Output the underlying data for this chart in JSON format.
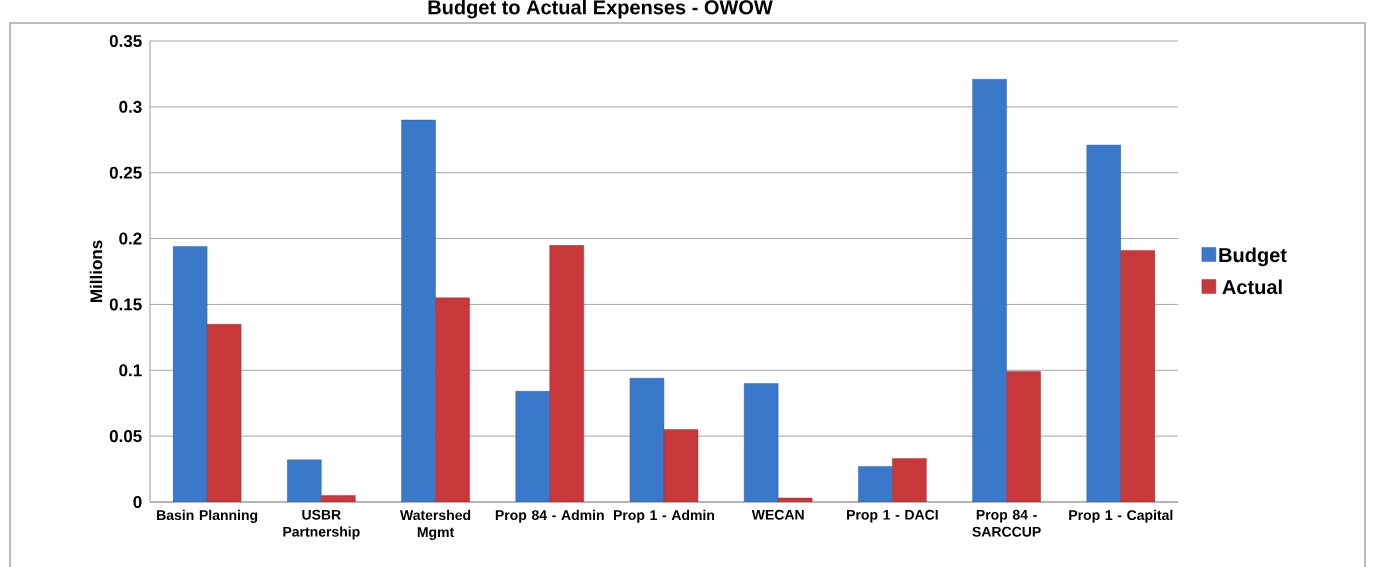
{
  "chart_data": {
    "type": "bar",
    "title": "Budget to Actual Expenses - OWOW",
    "ylabel": "Millions",
    "categories": [
      "Basin Planning",
      "USBR Partnership",
      "Watershed Mgmt",
      "Prop 84 - Admin",
      "Prop 1 - Admin",
      "WECAN",
      "Prop 1 - DACI",
      "Prop 84 - SARCCUP",
      "Prop 1 - Capital"
    ],
    "series": [
      {
        "name": "Budget",
        "color": "#3a78c9",
        "values": [
          0.194,
          0.032,
          0.29,
          0.084,
          0.094,
          0.09,
          0.027,
          0.321,
          0.271
        ]
      },
      {
        "name": "Actual",
        "color": "#c8383a",
        "values": [
          0.135,
          0.005,
          0.155,
          0.195,
          0.055,
          0.003,
          0.033,
          0.099,
          0.191
        ]
      }
    ],
    "ylim": [
      0,
      0.35
    ],
    "yticks": [
      0,
      0.05,
      0.1,
      0.15,
      0.2,
      0.25,
      0.3,
      0.35
    ],
    "grid": "y",
    "legend": "right"
  }
}
